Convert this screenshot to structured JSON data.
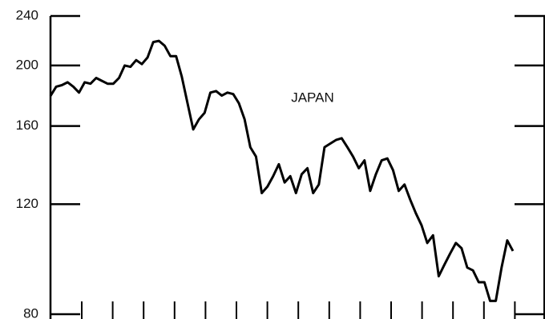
{
  "chart_data": {
    "type": "line",
    "annotation": "JAPAN",
    "log_scale": true,
    "color": "#000000",
    "ylim": [
      80,
      240
    ],
    "yticks": [
      80,
      120,
      160,
      200,
      240
    ],
    "values": [
      178.8,
      185,
      186,
      188,
      185,
      181,
      188,
      187,
      191,
      189,
      187,
      187,
      191,
      200,
      199,
      204,
      201,
      206,
      218,
      219,
      215,
      207,
      207,
      192,
      174,
      158,
      164,
      168,
      181,
      182,
      179,
      181,
      180,
      174,
      164,
      148,
      143,
      125,
      128,
      133,
      139,
      130,
      133,
      125,
      134,
      137,
      125,
      129,
      148,
      150,
      152,
      153,
      148,
      143,
      137,
      141,
      126,
      134,
      141,
      142,
      136,
      126,
      129,
      122,
      116,
      111,
      104,
      107,
      92,
      96,
      100,
      104,
      102,
      95,
      94,
      90,
      90,
      84,
      84,
      95,
      105,
      101
    ]
  }
}
